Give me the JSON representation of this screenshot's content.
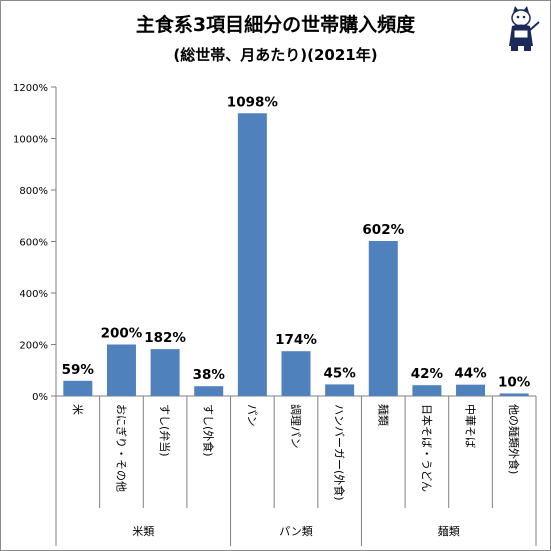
{
  "header": {
    "title": "主食系3項目細分の世帯購入頻度",
    "subtitle": "(総世帯、月あたり)(2021年)"
  },
  "mascot": {
    "icon": "cat-mascot-icon"
  },
  "chart_data": {
    "type": "bar",
    "title": "主食系3項目細分の世帯購入頻度",
    "subtitle": "(総世帯、月あたり)(2021年)",
    "categories": [
      "米",
      "おにぎり・その他",
      "すし(弁当)",
      "すし(外食)",
      "パン",
      "調理パン",
      "ハンバーガー(外食)",
      "麺類",
      "日本そば・うどん",
      "中華そば",
      "他の麺類外食)"
    ],
    "values": [
      59,
      200,
      182,
      38,
      1098,
      174,
      45,
      602,
      42,
      44,
      10
    ],
    "data_labels": [
      "59%",
      "200%",
      "182%",
      "38%",
      "1098%",
      "174%",
      "45%",
      "602%",
      "42%",
      "44%",
      "10%"
    ],
    "groups": [
      {
        "name": "米類",
        "start": 0,
        "end": 3
      },
      {
        "name": "パン類",
        "start": 4,
        "end": 6
      },
      {
        "name": "麺類",
        "start": 7,
        "end": 10
      }
    ],
    "yticks": [
      "0%",
      "200%",
      "400%",
      "600%",
      "800%",
      "1000%",
      "1200%"
    ],
    "ylim": [
      0,
      1200
    ],
    "grid": false,
    "bar_color": "#4f81bd"
  }
}
